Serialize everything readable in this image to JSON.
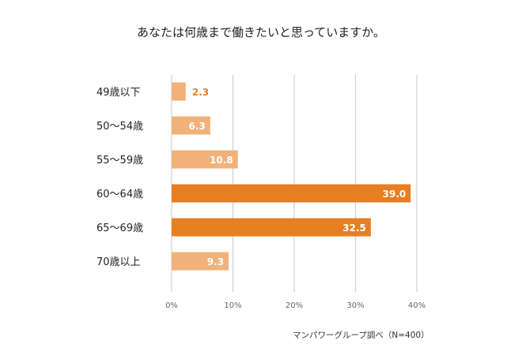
{
  "chart_data": {
    "type": "bar",
    "orientation": "horizontal",
    "title": "あなたは何歳まで働きたいと思っていますか。",
    "categories": [
      "49歳以下",
      "50〜54歳",
      "55〜59歳",
      "60〜64歳",
      "65〜69歳",
      "70歳以上"
    ],
    "values": [
      2.3,
      6.3,
      10.8,
      39.0,
      32.5,
      9.3
    ],
    "data_labels": [
      "2.3",
      "6.3",
      "10.8",
      "39.0",
      "32.5",
      "9.3"
    ],
    "highlight": [
      false,
      false,
      false,
      true,
      true,
      false
    ],
    "xlim": [
      0,
      40
    ],
    "xticks": [
      "0%",
      "10%",
      "20%",
      "30%",
      "40%"
    ],
    "grid": true,
    "colors": {
      "normal": "#F0B27A",
      "highlight": "#E87E22",
      "outside_label": "#E87E22"
    },
    "source_note": "マンパワーグループ調べ（N=400）"
  }
}
